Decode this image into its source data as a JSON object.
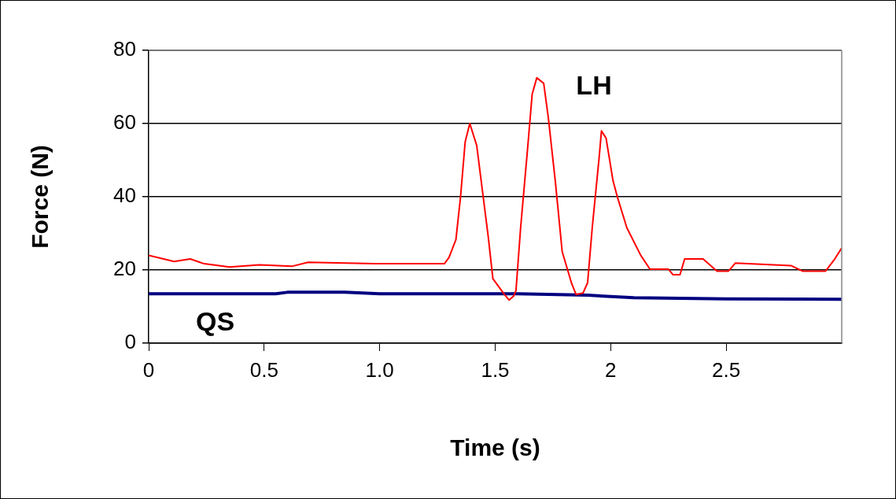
{
  "chart_data": {
    "type": "line",
    "xlabel": "Time (s)",
    "ylabel": "Force (N)",
    "xlim": [
      0,
      3
    ],
    "xticks": [
      0,
      0.5,
      {
        "value": 1,
        "label": "1.0"
      },
      1.5,
      2,
      2.5
    ],
    "ylim": [
      0,
      80
    ],
    "yticks": [
      0,
      20,
      40,
      60,
      80
    ],
    "grid": "y",
    "legend": false,
    "marker": "none",
    "line_style": "solid",
    "series": [
      {
        "name": "LH",
        "color": "#ff0000",
        "x": [
          0,
          0.04,
          0.11,
          0.18,
          0.24,
          0.35,
          0.48,
          0.62,
          0.69,
          0.98,
          1.28,
          1.3,
          1.33,
          1.35,
          1.37,
          1.39,
          1.42,
          1.44,
          1.47,
          1.49,
          1.54,
          1.56,
          1.58,
          1.59,
          1.61,
          1.64,
          1.66,
          1.68,
          1.71,
          1.73,
          1.76,
          1.79,
          1.83,
          1.85,
          1.88,
          1.9,
          1.92,
          1.95,
          1.96,
          1.98,
          2.01,
          2.03,
          2.07,
          2.13,
          2.17,
          2.25,
          2.27,
          2.3,
          2.32,
          2.4,
          2.46,
          2.51,
          2.54,
          2.78,
          2.83,
          2.93,
          2.97,
          3
        ],
        "values": [
          24,
          23.4,
          22.3,
          23,
          21.7,
          20.8,
          21.4,
          21,
          22.1,
          21.7,
          21.7,
          23.4,
          28.3,
          40,
          55,
          60,
          54,
          44,
          29,
          17.6,
          13.3,
          11.8,
          12.9,
          14.4,
          31.5,
          53,
          68,
          72.5,
          71,
          61.6,
          44.4,
          25,
          16.5,
          13.3,
          13.7,
          16.5,
          31.5,
          50.8,
          58,
          56,
          44.4,
          39.7,
          31.5,
          24,
          20.2,
          20.2,
          18.7,
          18.7,
          23,
          23,
          19.7,
          19.7,
          21.9,
          21.2,
          19.7,
          19.7,
          23,
          26
        ]
      },
      {
        "name": "QS",
        "color": "#000080",
        "x": [
          0,
          0.55,
          0.6,
          0.85,
          1,
          1.6,
          1.9,
          2.1,
          2.5,
          3
        ],
        "values": [
          13.5,
          13.5,
          13.9,
          13.9,
          13.5,
          13.5,
          13.1,
          12.4,
          12.1,
          12
        ]
      }
    ]
  }
}
